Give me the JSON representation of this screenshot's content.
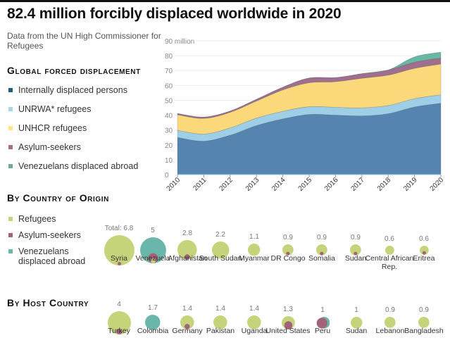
{
  "title": "82.4 million forcibly displaced worldwide in 2020",
  "subtitle": "Data from the UN High Commissioner for Refugees",
  "colors": {
    "idp": "#5584b0",
    "unrwa": "#9fcfe6",
    "unhcr": "#fbd97a",
    "asylum": "#a06f8e",
    "venezuelans": "#6bb7a6",
    "refugees_bubble": "#c5d37a",
    "asylum_bubble": "#a2627a",
    "venezuelans_bubble": "#6ab6aa"
  },
  "sections": {
    "global": "Global forced displacement",
    "origin": "By Country of Origin",
    "host": "By Host Country"
  },
  "global_legend": [
    {
      "label": "Internally displaced persons",
      "color": "#1f5c86"
    },
    {
      "label": "UNRWA* refugees",
      "color": "#a9d6ea"
    },
    {
      "label": "UNHCR refugees",
      "color": "#fde68a"
    },
    {
      "label": "Asylum-seekers",
      "color": "#a86c89"
    },
    {
      "label": "Venezuelans displaced abroad",
      "color": "#6fa99a"
    }
  ],
  "bubble_legend": [
    {
      "label": "Refugees",
      "color": "#c5d37a"
    },
    {
      "label": "Asylum-seekers",
      "color": "#a2627a"
    },
    {
      "label": "Venezuelans\ndisplaced abroad",
      "color": "#6ab6aa"
    }
  ],
  "chart_data": [
    {
      "type": "area",
      "title": "Global forced displacement",
      "ylabel": "million",
      "y_top_tick_label": "90 million",
      "ylim": [
        0,
        90
      ],
      "yticks": [
        0,
        10,
        20,
        30,
        40,
        50,
        60,
        70,
        80,
        90
      ],
      "grid": true,
      "stacked": true,
      "x": [
        "2010",
        "2011",
        "2012",
        "2013",
        "2014",
        "2015",
        "2016",
        "2017",
        "2018",
        "2019",
        "2020"
      ],
      "series": [
        {
          "name": "Internally displaced persons",
          "key": "idp",
          "values": [
            25,
            22.5,
            26.5,
            33,
            37.5,
            40.5,
            40,
            39.5,
            41,
            45.5,
            48
          ]
        },
        {
          "name": "UNRWA* refugees",
          "key": "unrwa",
          "values": [
            4.8,
            4.8,
            4.9,
            5.0,
            5.1,
            5.2,
            5.3,
            5.4,
            5.5,
            5.6,
            5.7
          ]
        },
        {
          "name": "UNHCR refugees",
          "key": "unhcr",
          "values": [
            10.5,
            10.5,
            10.5,
            11.5,
            14.4,
            16.1,
            17.2,
            19.9,
            20.4,
            20.4,
            20.7
          ]
        },
        {
          "name": "Asylum-seekers",
          "key": "asylum",
          "values": [
            0.8,
            0.9,
            0.9,
            1.2,
            1.8,
            3.2,
            2.8,
            3.1,
            3.5,
            4.1,
            4.1
          ]
        },
        {
          "name": "Venezuelans displaced abroad",
          "key": "venezuelans",
          "values": [
            0,
            0,
            0,
            0,
            0,
            0,
            0,
            0,
            0,
            3.6,
            3.9
          ]
        }
      ],
      "legend": "left"
    },
    {
      "type": "bubble",
      "title": "By Country of Origin",
      "unit": "million",
      "categories": [
        "Syria",
        "Venezuela",
        "Afghanistan",
        "South Sudan",
        "Myanmar",
        "DR Congo",
        "Somalia",
        "Sudan",
        "Central African Rep.",
        "Eritrea"
      ],
      "value_labels": [
        "Total: 6.8",
        "5",
        "2.8",
        "2.2",
        "1.1",
        "0.9",
        "0.9",
        "0.9",
        "0.6",
        "0.6"
      ],
      "totals": [
        6.8,
        5,
        2.8,
        2.2,
        1.1,
        0.9,
        0.9,
        0.9,
        0.6,
        0.6
      ],
      "composition": [
        {
          "main": "refugees",
          "asylum": 0.1
        },
        {
          "main": "venezuelans",
          "asylum": 0.9,
          "refugees": 0.2
        },
        {
          "main": "refugees",
          "asylum": 0.25
        },
        {
          "main": "refugees",
          "asylum": 0
        },
        {
          "main": "refugees",
          "asylum": 0
        },
        {
          "main": "refugees",
          "asylum": 0.1
        },
        {
          "main": "refugees",
          "asylum": 0.1
        },
        {
          "main": "refugees",
          "asylum": 0.08
        },
        {
          "main": "refugees",
          "asylum": 0
        },
        {
          "main": "refugees",
          "asylum": 0.1
        }
      ]
    },
    {
      "type": "bubble",
      "title": "By Host Country",
      "unit": "million",
      "categories": [
        "Turkey",
        "Colombia",
        "Germany",
        "Pakistan",
        "Uganda",
        "United States",
        "Peru",
        "Sudan",
        "Lebanon",
        "Bangladesh"
      ],
      "value_labels": [
        "4",
        "1.7",
        "1.4",
        "1.4",
        "1.4",
        "1.3",
        "1",
        "1",
        "0.9",
        "0.9"
      ],
      "totals": [
        4,
        1.7,
        1.4,
        1.4,
        1.4,
        1.3,
        1,
        1,
        0.9,
        0.9
      ],
      "composition": [
        {
          "main": "refugees",
          "asylum": 0.3
        },
        {
          "main": "venezuelans",
          "asylum": 0
        },
        {
          "main": "refugees",
          "asylum": 0.25
        },
        {
          "main": "refugees",
          "asylum": 0
        },
        {
          "main": "refugees",
          "asylum": 0
        },
        {
          "main": "refugees",
          "asylum": 0.6
        },
        {
          "main": "asylum",
          "asylum": 0.5,
          "venezuelans": 0.5
        },
        {
          "main": "refugees",
          "asylum": 0
        },
        {
          "main": "refugees",
          "asylum": 0
        },
        {
          "main": "refugees",
          "asylum": 0
        }
      ]
    }
  ]
}
